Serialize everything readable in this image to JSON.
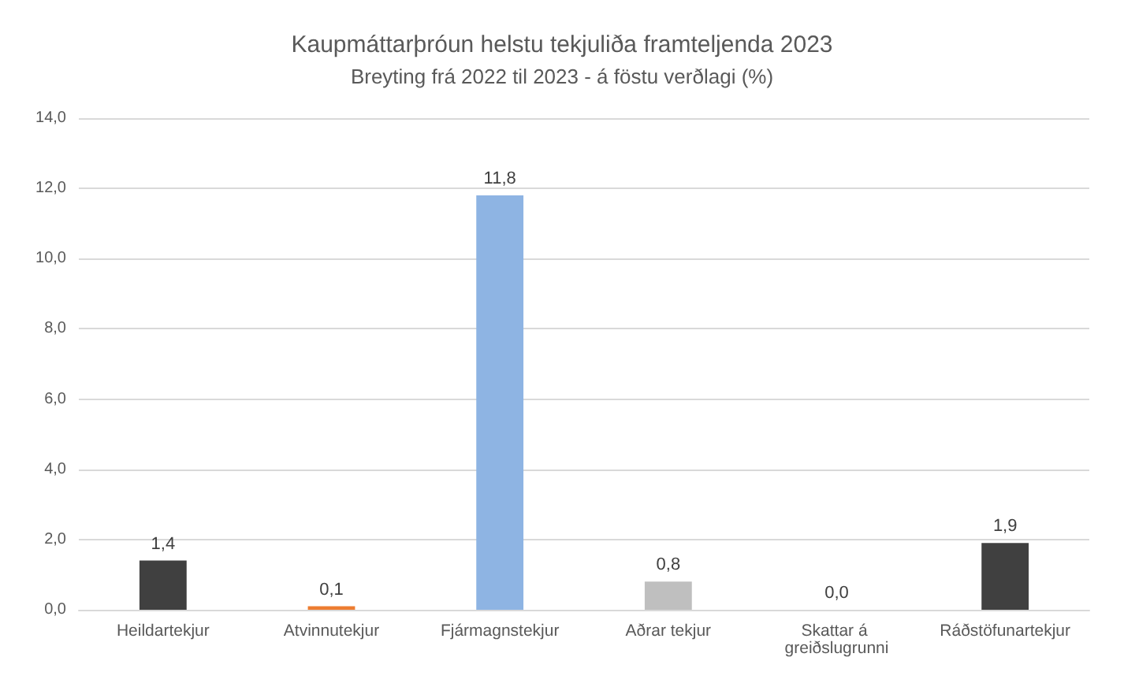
{
  "chart_data": {
    "type": "bar",
    "title": "Kaupmáttarþróun helstu tekjuliða framteljenda 2023",
    "subtitle": "Breyting frá 2022 til 2023 - á föstu verðlagi (%)",
    "categories": [
      "Heildartekjur",
      "Atvinnutekjur",
      "Fjármagnstekjur",
      "Aðrar tekjur",
      "Skattar á greiðslugrunni",
      "Ráðstöfunartekjur"
    ],
    "values": [
      1.4,
      0.1,
      11.8,
      0.8,
      0.0,
      1.9
    ],
    "colors": [
      "#404040",
      "#ed7d31",
      "#8eb4e3",
      "#bfbfbf",
      "#bfbfbf",
      "#404040"
    ],
    "value_labels": [
      "1,4",
      "0,1",
      "11,8",
      "0,8",
      "0,0",
      "1,9"
    ],
    "ylim": [
      0,
      14
    ],
    "yticks": [
      {
        "value": 0,
        "label": "0,0"
      },
      {
        "value": 2,
        "label": "2,0"
      },
      {
        "value": 4,
        "label": "4,0"
      },
      {
        "value": 6,
        "label": "6,0"
      },
      {
        "value": 8,
        "label": "8,0"
      },
      {
        "value": 10,
        "label": "10,0"
      },
      {
        "value": 12,
        "label": "12,0"
      },
      {
        "value": 14,
        "label": "14,0"
      }
    ],
    "grid": "y"
  }
}
